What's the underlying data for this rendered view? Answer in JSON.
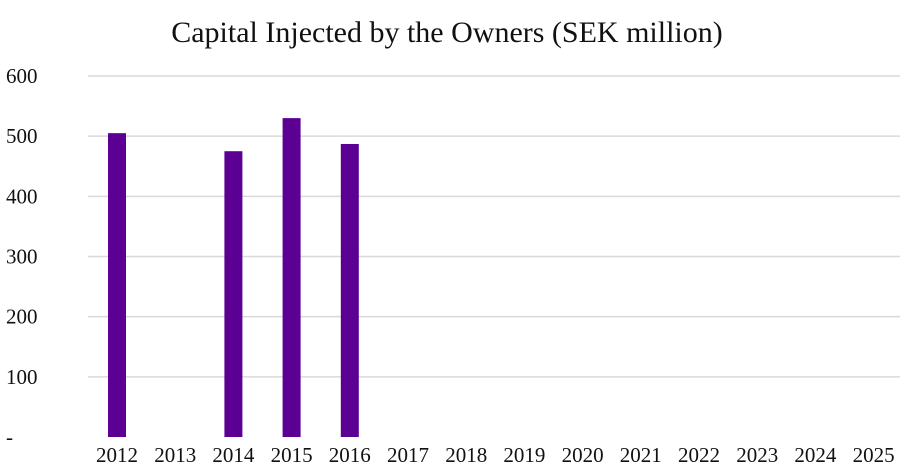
{
  "chart_data": {
    "type": "bar",
    "title": "Capital Injected by the Owners (SEK million)",
    "xlabel": "",
    "ylabel": "",
    "categories": [
      "2012",
      "2013",
      "2014",
      "2015",
      "2016",
      "2017",
      "2018",
      "2019",
      "2020",
      "2021",
      "2022",
      "2023",
      "2024",
      "2025"
    ],
    "values": [
      505,
      null,
      475,
      530,
      487,
      null,
      null,
      null,
      null,
      null,
      null,
      null,
      null,
      null
    ],
    "ylim": [
      0,
      600
    ],
    "yticks": [
      0,
      100,
      200,
      300,
      400,
      500,
      600
    ],
    "ytick_labels": [
      "-",
      "100",
      "200",
      "300",
      "400",
      "500",
      "600"
    ],
    "grid": true,
    "legend": "none",
    "bar_color": "#5c0094",
    "grid_color": "#d9d9d9"
  }
}
